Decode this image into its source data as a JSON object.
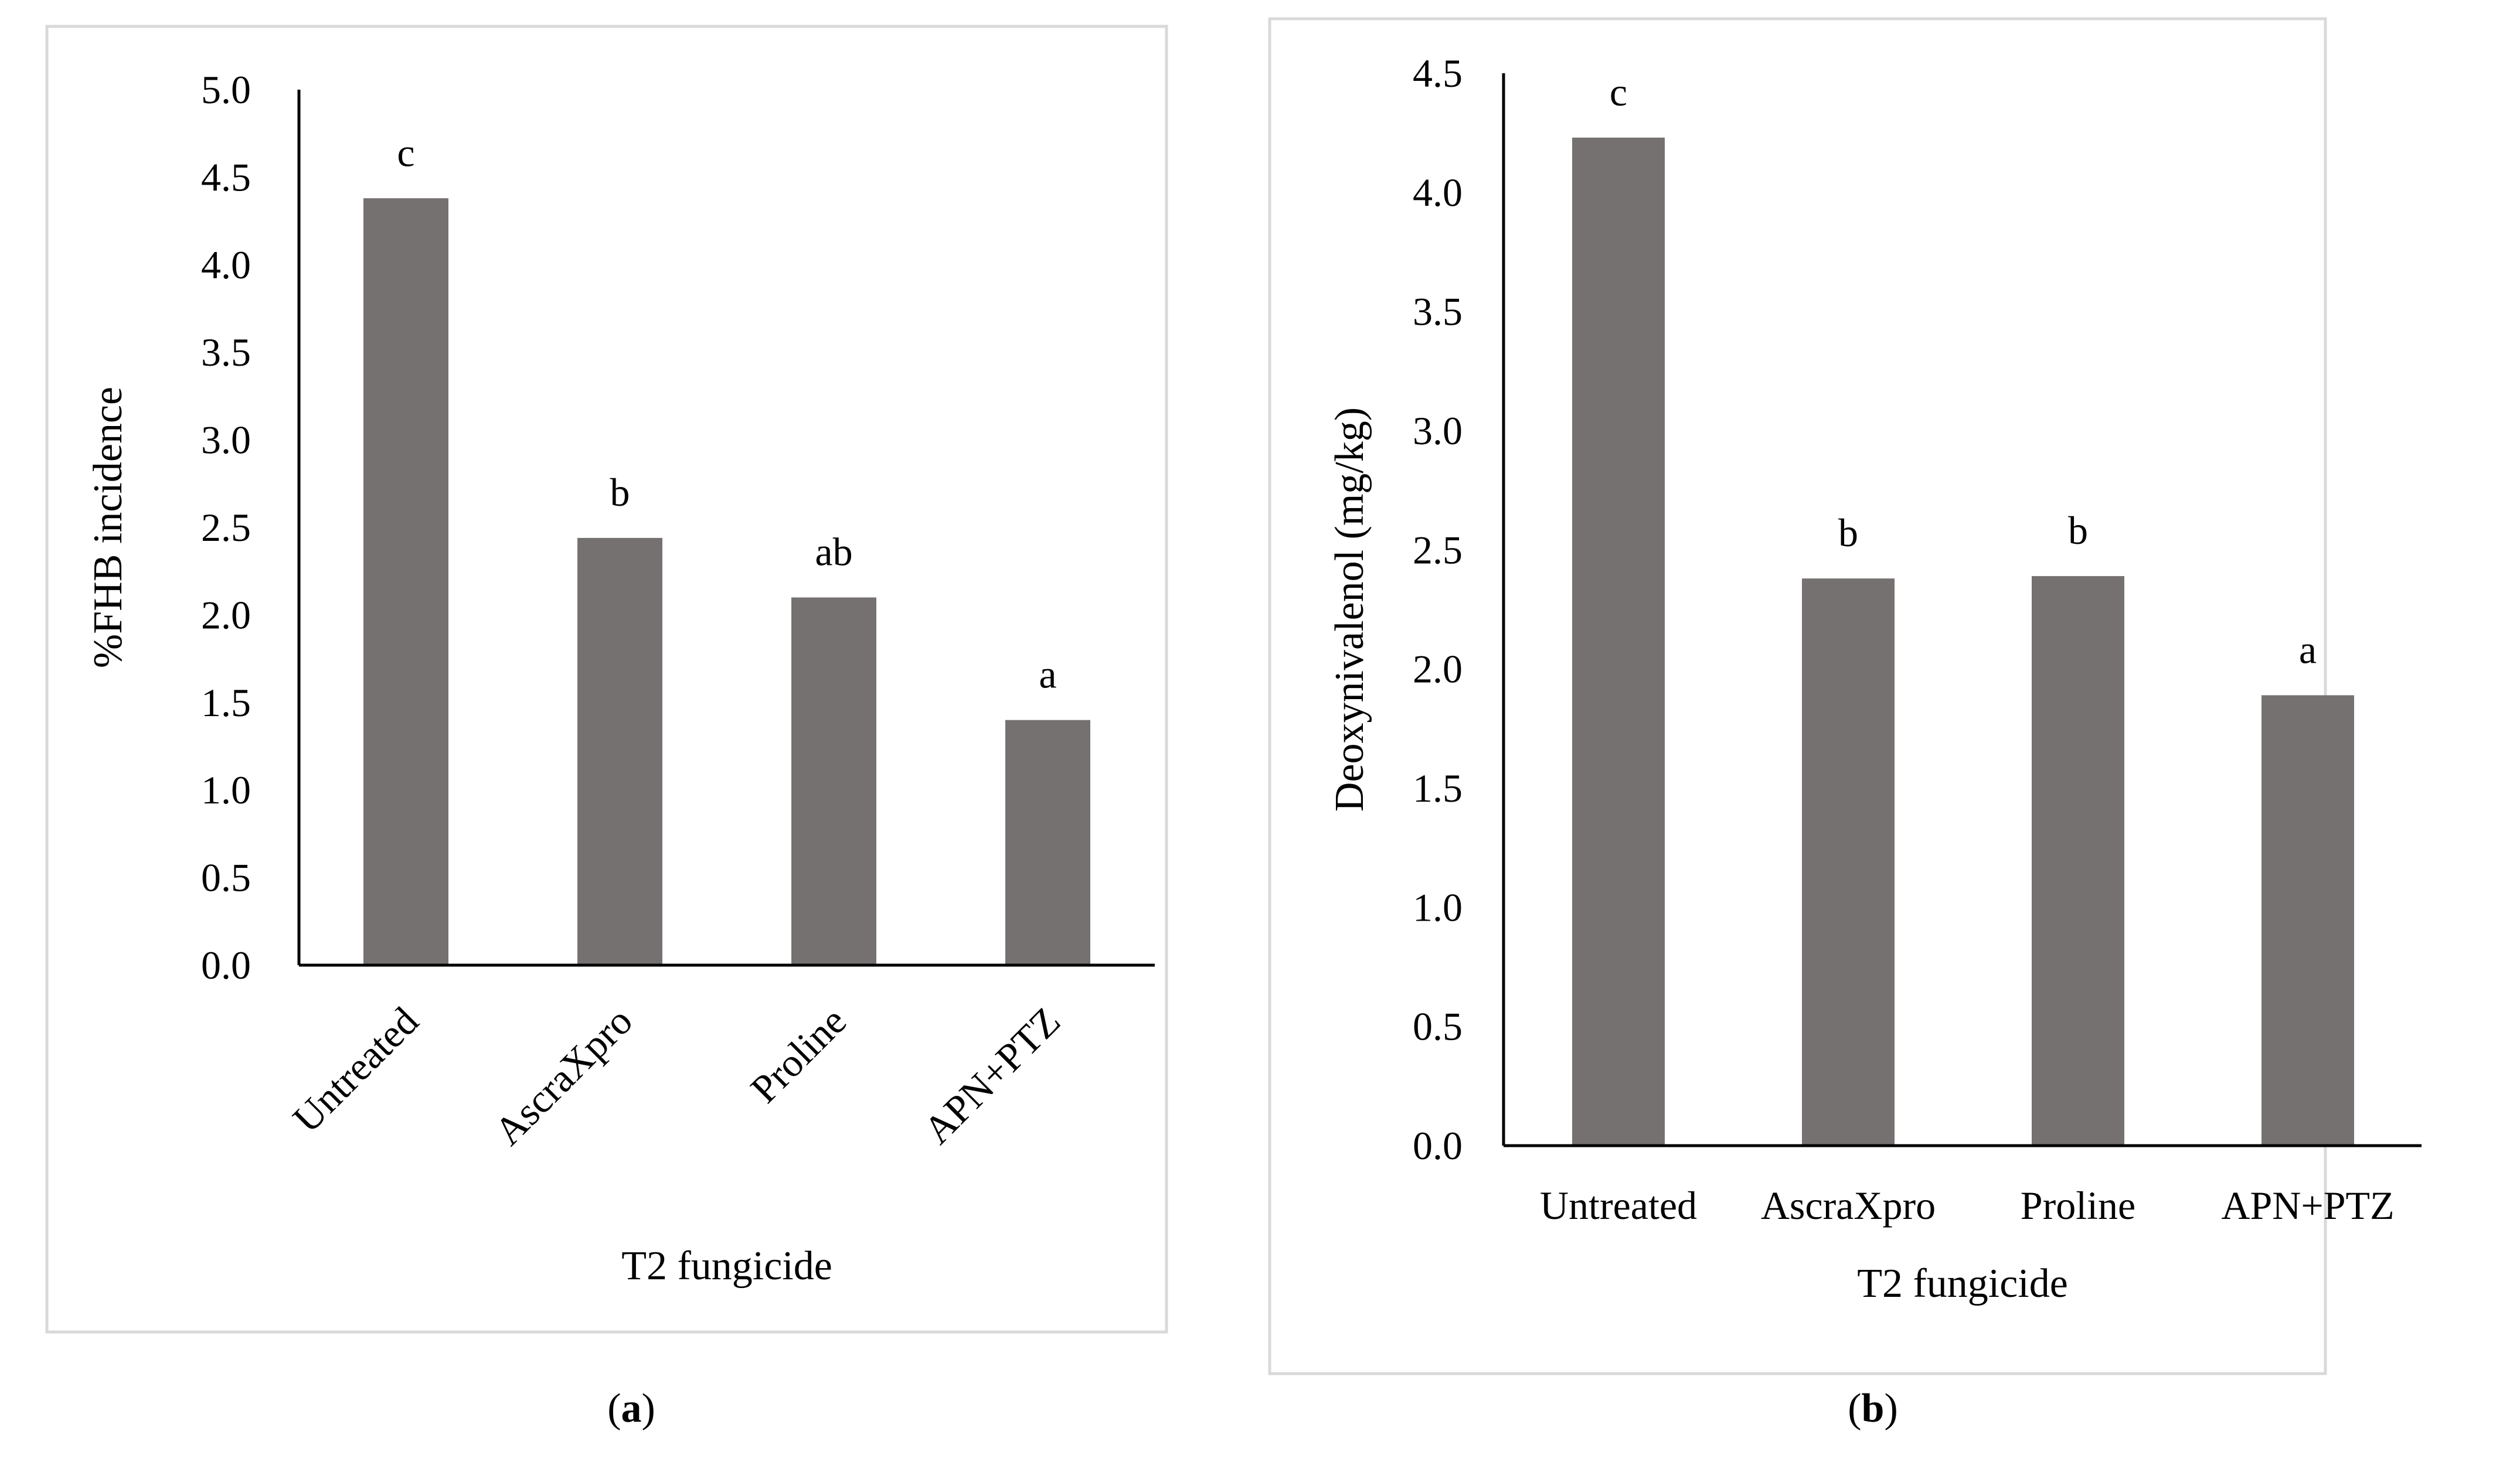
{
  "chart_data": [
    {
      "type": "bar",
      "panel_id": "a",
      "categories": [
        "Untreated",
        "AscraXpro",
        "Proline",
        "APN+PTZ"
      ],
      "values": [
        4.38,
        2.44,
        2.1,
        1.4
      ],
      "bar_labels": [
        "c",
        "b",
        "ab",
        "a"
      ],
      "xlabel": "T2 fungicide",
      "ylabel": "%FHB incidence",
      "ylim": [
        0,
        5.0
      ],
      "yticks": [
        "0.0",
        "0.5",
        "1.0",
        "1.5",
        "2.0",
        "2.5",
        "3.0",
        "3.5",
        "4.0",
        "4.5",
        "5.0"
      ],
      "x_tick_rotation": -45,
      "bar_color": "#767171",
      "border_color": "#d9d9d9",
      "grid": false,
      "caption": {
        "open": "(",
        "letter": "a",
        "close": ")"
      }
    },
    {
      "type": "bar",
      "panel_id": "b",
      "categories": [
        "Untreated",
        "AscraXpro",
        "Proline",
        "APN+PTZ"
      ],
      "values": [
        4.23,
        2.38,
        2.39,
        1.89
      ],
      "bar_labels": [
        "c",
        "b",
        "b",
        "a"
      ],
      "xlabel": "T2 fungicide",
      "ylabel": "Deoxynivalenol (mg/kg)",
      "ylim": [
        0,
        4.5
      ],
      "yticks": [
        "0.0",
        "0.5",
        "1.0",
        "1.5",
        "2.0",
        "2.5",
        "3.0",
        "3.5",
        "4.0",
        "4.5"
      ],
      "x_tick_rotation": 0,
      "bar_color": "#767171",
      "border_color": "#d9d9d9",
      "grid": false,
      "caption": {
        "open": "(",
        "letter": "b",
        "close": ")"
      }
    }
  ]
}
